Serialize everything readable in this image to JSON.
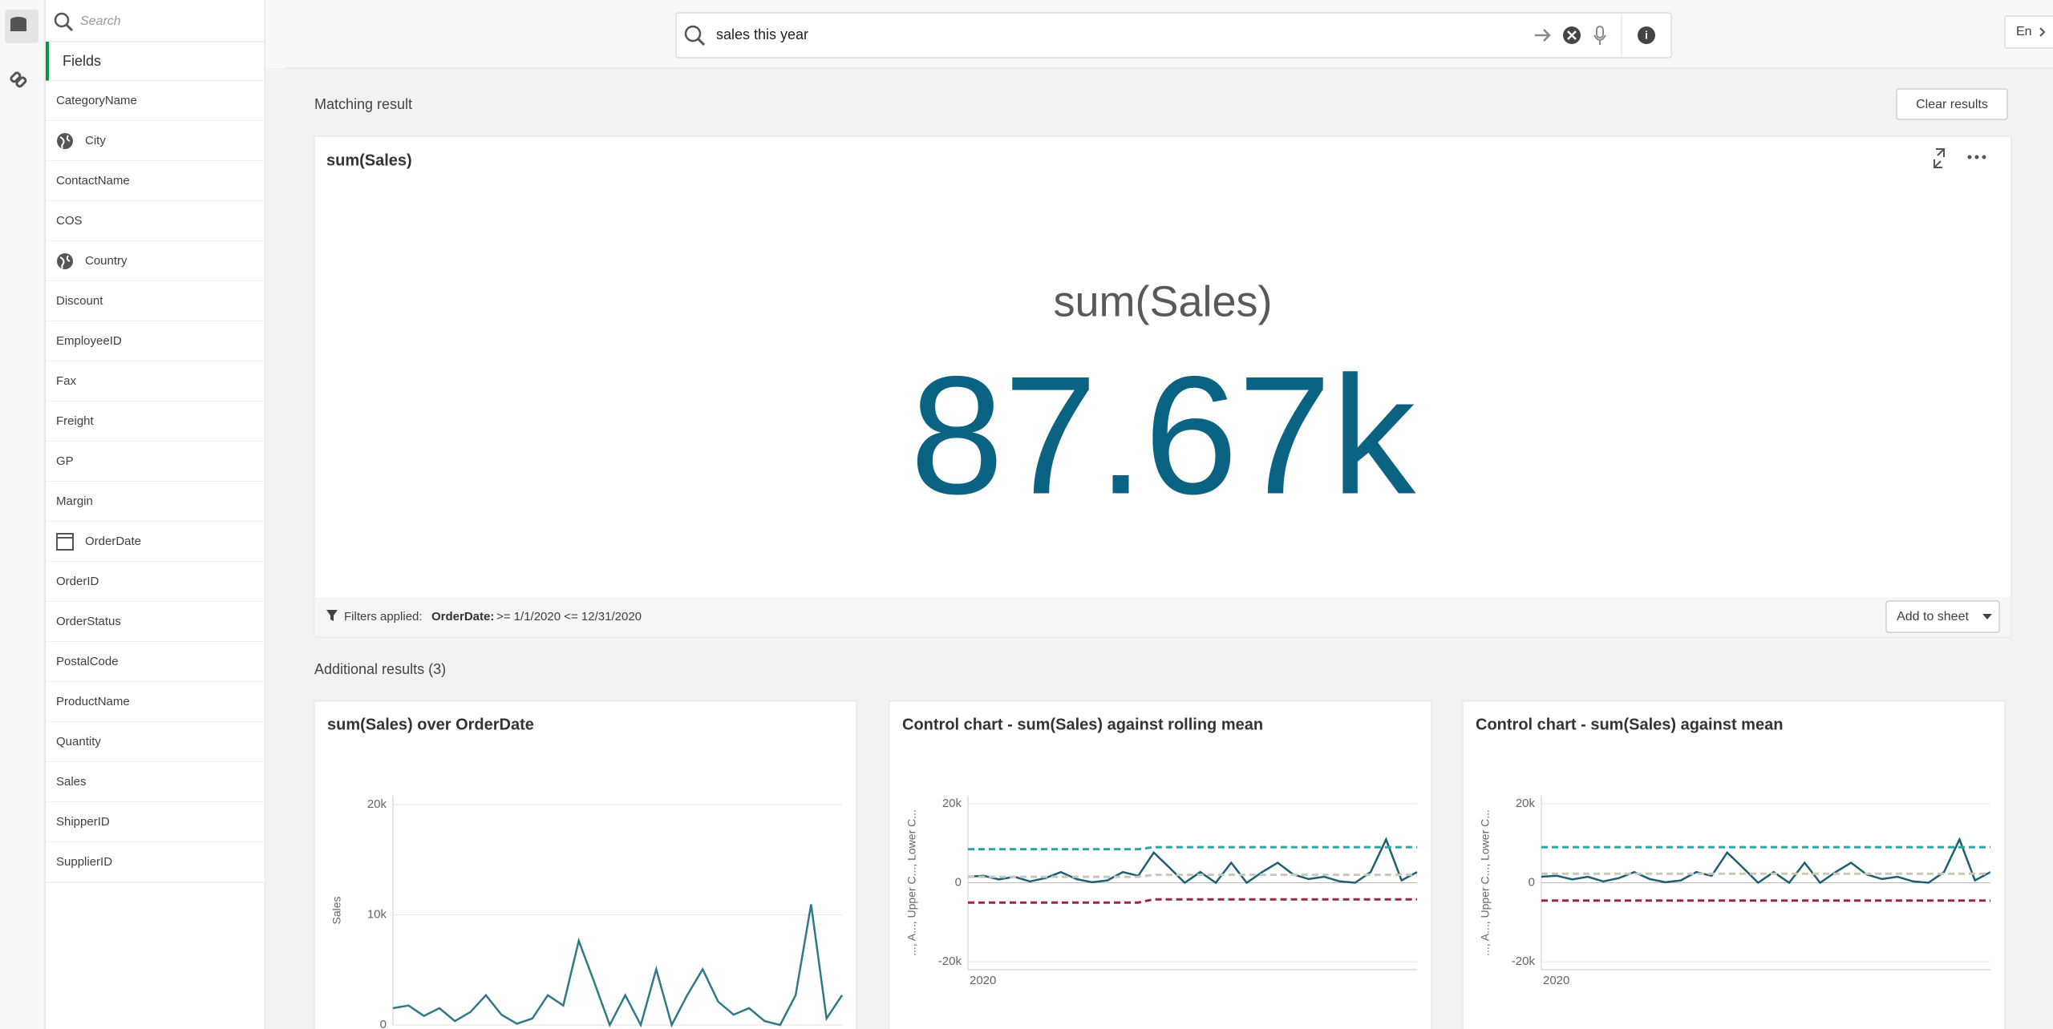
{
  "search": {
    "placeholder": "Search"
  },
  "sidebar": {
    "tab": "Fields",
    "fields": [
      {
        "name": "CategoryName"
      },
      {
        "name": "City",
        "icon": "globe"
      },
      {
        "name": "ContactName"
      },
      {
        "name": "COS"
      },
      {
        "name": "Country",
        "icon": "globe"
      },
      {
        "name": "Discount"
      },
      {
        "name": "EmployeeID"
      },
      {
        "name": "Fax"
      },
      {
        "name": "Freight"
      },
      {
        "name": "GP"
      },
      {
        "name": "Margin"
      },
      {
        "name": "OrderDate",
        "icon": "calendar"
      },
      {
        "name": "OrderID"
      },
      {
        "name": "OrderStatus"
      },
      {
        "name": "PostalCode"
      },
      {
        "name": "ProductName"
      },
      {
        "name": "Quantity"
      },
      {
        "name": "Sales"
      },
      {
        "name": "ShipperID"
      },
      {
        "name": "SupplierID"
      }
    ]
  },
  "query": "sales this year",
  "language": "En",
  "matching": {
    "heading": "Matching result",
    "clear_button": "Clear results",
    "card": {
      "title": "sum(Sales)",
      "kpi_label": "sum(Sales)",
      "kpi_value": "87.67k",
      "filters_label": "Filters applied:",
      "filter_field": "OrderDate:",
      "filter_value": ">= 1/1/2020 <= 12/31/2020",
      "add_button": "Add to sheet"
    }
  },
  "additional": {
    "heading": "Additional results (3)"
  },
  "chart_data": [
    {
      "type": "line",
      "title": "sum(Sales) over OrderDate",
      "y_label": "Sales",
      "categories": [
        null,
        null,
        null,
        null,
        null,
        null,
        null,
        null,
        null,
        null,
        null,
        null,
        null,
        null,
        null,
        null,
        null,
        null,
        null,
        null,
        null,
        null,
        null,
        null,
        null,
        null,
        null,
        null,
        null,
        null
      ],
      "series": [
        {
          "color": "#2f7a86",
          "values": [
            1529,
            1765,
            824,
            1529,
            353,
            1176,
            2706,
            941,
            118,
            588,
            2706,
            1765,
            7647,
            3882,
            0,
            2706,
            0,
            5059,
            0,
            2706,
            5059,
            2118,
            941,
            1529,
            353,
            0,
            2706,
            10941,
            588,
            2706
          ]
        }
      ],
      "ylim": [
        0,
        20800
      ],
      "yticks": [
        0,
        {
          "value": 10000,
          "label": "10k"
        },
        {
          "value": 20000,
          "label": "20k"
        }
      ],
      "grid": true
    },
    {
      "type": "line",
      "title": "Control chart - sum(Sales) against rolling mean",
      "y_label": "..., A..., Upper C..., Lower C...",
      "categories": [
        "2020",
        null,
        null,
        null,
        null,
        null,
        null,
        null,
        null,
        null,
        null,
        null,
        null,
        null,
        null,
        null,
        null,
        null,
        null,
        null,
        null,
        null,
        null,
        null,
        null,
        null,
        null,
        null,
        null,
        null
      ],
      "series": [
        {
          "color": "#1d5f73",
          "dash": false,
          "values": [
            1529,
            1765,
            824,
            1529,
            353,
            1176,
            2706,
            941,
            118,
            588,
            2706,
            1765,
            7647,
            3882,
            0,
            2706,
            0,
            5059,
            0,
            2706,
            5059,
            2118,
            941,
            1529,
            353,
            0,
            2706,
            10941,
            588,
            2706
          ]
        },
        {
          "color": "#2aa6a6",
          "dash": true,
          "values": [
            8500,
            8500,
            8500,
            8500,
            8500,
            8500,
            8500,
            8500,
            8500,
            8500,
            8500,
            8500,
            9000,
            9000,
            9000,
            9000,
            9000,
            9000,
            9000,
            9000,
            9000,
            9000,
            9000,
            9000,
            9000,
            9000,
            9000,
            9000,
            9000,
            9000
          ]
        },
        {
          "color": "#c8c8b8",
          "dash": true,
          "values": [
            1500,
            1500,
            1500,
            1500,
            1500,
            1500,
            1500,
            1500,
            1500,
            1500,
            1500,
            1500,
            2000,
            2000,
            2000,
            2000,
            2000,
            2000,
            2000,
            2000,
            2000,
            2000,
            2000,
            2000,
            2000,
            2000,
            2000,
            2000,
            2000,
            2000
          ]
        },
        {
          "color": "#9a2a3a",
          "dash": true,
          "values": [
            -5000,
            -5000,
            -5000,
            -5000,
            -5000,
            -5000,
            -5000,
            -5000,
            -5000,
            -5000,
            -5000,
            -5000,
            -4200,
            -4200,
            -4200,
            -4200,
            -4200,
            -4200,
            -4200,
            -4200,
            -4200,
            -4200,
            -4200,
            -4200,
            -4200,
            -4200,
            -4200,
            -4200,
            -4200,
            -4200
          ]
        }
      ],
      "ylim": [
        -22000,
        22000
      ],
      "yticks": [
        {
          "value": -20000,
          "label": "-20k"
        },
        0,
        {
          "value": 20000,
          "label": "20k"
        }
      ],
      "grid": true
    },
    {
      "type": "line",
      "title": "Control chart - sum(Sales) against mean",
      "y_label": "..., A..., Upper C..., Lower C...",
      "categories": [
        "2020",
        null,
        null,
        null,
        null,
        null,
        null,
        null,
        null,
        null,
        null,
        null,
        null,
        null,
        null,
        null,
        null,
        null,
        null,
        null,
        null,
        null,
        null,
        null,
        null,
        null,
        null,
        null,
        null,
        null
      ],
      "series": [
        {
          "color": "#1d5f73",
          "dash": false,
          "values": [
            1529,
            1765,
            824,
            1529,
            353,
            1176,
            2706,
            941,
            118,
            588,
            2706,
            1765,
            7647,
            3882,
            0,
            2706,
            0,
            5059,
            0,
            2706,
            5059,
            2118,
            941,
            1529,
            353,
            0,
            2706,
            10941,
            588,
            2706
          ]
        },
        {
          "color": "#2aa6a6",
          "dash": true,
          "values": [
            9000,
            9000,
            9000,
            9000,
            9000,
            9000,
            9000,
            9000,
            9000,
            9000,
            9000,
            9000,
            9000,
            9000,
            9000,
            9000,
            9000,
            9000,
            9000,
            9000,
            9000,
            9000,
            9000,
            9000,
            9000,
            9000,
            9000,
            9000,
            9000,
            9000
          ]
        },
        {
          "color": "#c8c8b8",
          "dash": true,
          "values": [
            2300,
            2300,
            2300,
            2300,
            2300,
            2300,
            2300,
            2300,
            2300,
            2300,
            2300,
            2300,
            2300,
            2300,
            2300,
            2300,
            2300,
            2300,
            2300,
            2300,
            2300,
            2300,
            2300,
            2300,
            2300,
            2300,
            2300,
            2300,
            2300,
            2300
          ]
        },
        {
          "color": "#9a2a3a",
          "dash": true,
          "values": [
            -4500,
            -4500,
            -4500,
            -4500,
            -4500,
            -4500,
            -4500,
            -4500,
            -4500,
            -4500,
            -4500,
            -4500,
            -4500,
            -4500,
            -4500,
            -4500,
            -4500,
            -4500,
            -4500,
            -4500,
            -4500,
            -4500,
            -4500,
            -4500,
            -4500,
            -4500,
            -4500,
            -4500,
            -4500,
            -4500
          ]
        }
      ],
      "ylim": [
        -22000,
        22000
      ],
      "yticks": [
        {
          "value": -20000,
          "label": "-20k"
        },
        0,
        {
          "value": 20000,
          "label": "20k"
        }
      ],
      "grid": true
    }
  ]
}
